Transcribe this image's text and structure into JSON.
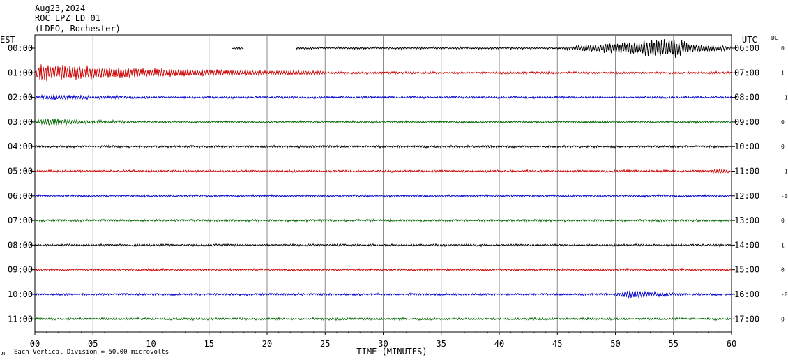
{
  "header": {
    "date": "Aug23,2024",
    "station": "ROC LPZ LD 01",
    "network": "(LDEO, Rochester)"
  },
  "left_zone": "EST",
  "right_zone": "UTC",
  "dc_label": "DC",
  "footer": {
    "scale_note": "Each Vertical Division =   50.00 microvolts",
    "corner_mark": "л"
  },
  "chart_data": {
    "type": "line",
    "title": "",
    "xlabel": "TIME (MINUTES)",
    "x_ticks": [
      "00",
      "05",
      "10",
      "15",
      "20",
      "25",
      "30",
      "35",
      "40",
      "45",
      "50",
      "55",
      "60"
    ],
    "xlim": [
      0,
      60
    ],
    "grid": "vertical lines every 5 minutes",
    "trace_colors": [
      "#000000",
      "#cc0000",
      "#0000cc",
      "#006600"
    ],
    "rows": [
      {
        "est": "00:00",
        "utc": "06:00",
        "dc": "0",
        "color": "#000000",
        "segments": [
          [
            17,
            18
          ],
          [
            22.5,
            60
          ]
        ],
        "events": [
          {
            "start": 45,
            "end": 60,
            "peak_minute": 55,
            "amp": 1.0
          }
        ]
      },
      {
        "est": "01:00",
        "utc": "07:00",
        "dc": "1",
        "color": "#cc0000",
        "segments": [
          [
            0,
            60
          ]
        ],
        "events": [
          {
            "start": 0,
            "end": 25,
            "peak_minute": 0.3,
            "amp": 0.9
          }
        ]
      },
      {
        "est": "02:00",
        "utc": "08:00",
        "dc": "-1",
        "color": "#0000cc",
        "segments": [
          [
            0,
            60
          ]
        ],
        "events": [
          {
            "start": 0,
            "end": 10,
            "peak_minute": 1.5,
            "amp": 0.2
          }
        ]
      },
      {
        "est": "03:00",
        "utc": "09:00",
        "dc": "0",
        "color": "#006600",
        "segments": [
          [
            0,
            60
          ]
        ],
        "events": [
          {
            "start": 0,
            "end": 8,
            "peak_minute": 1.0,
            "amp": 0.3
          }
        ]
      },
      {
        "est": "04:00",
        "utc": "10:00",
        "dc": "0",
        "color": "#000000",
        "segments": [
          [
            0,
            60
          ]
        ],
        "events": []
      },
      {
        "est": "05:00",
        "utc": "11:00",
        "dc": "-1",
        "color": "#cc0000",
        "segments": [
          [
            0,
            60
          ]
        ],
        "events": [
          {
            "start": 58,
            "end": 60,
            "peak_minute": 59,
            "amp": 0.2
          }
        ]
      },
      {
        "est": "06:00",
        "utc": "12:00",
        "dc": "-0",
        "color": "#0000cc",
        "segments": [
          [
            0,
            60
          ]
        ],
        "events": []
      },
      {
        "est": "07:00",
        "utc": "13:00",
        "dc": "0",
        "color": "#006600",
        "segments": [
          [
            0,
            60
          ]
        ],
        "events": []
      },
      {
        "est": "08:00",
        "utc": "14:00",
        "dc": "1",
        "color": "#000000",
        "segments": [
          [
            0,
            60
          ]
        ],
        "events": []
      },
      {
        "est": "09:00",
        "utc": "15:00",
        "dc": "0",
        "color": "#cc0000",
        "segments": [
          [
            0,
            60
          ]
        ],
        "events": []
      },
      {
        "est": "10:00",
        "utc": "16:00",
        "dc": "-0",
        "color": "#0000cc",
        "segments": [
          [
            0,
            60
          ]
        ],
        "events": [
          {
            "start": 50,
            "end": 56,
            "peak_minute": 51.3,
            "amp": 0.45
          }
        ]
      },
      {
        "est": "11:00",
        "utc": "17:00",
        "dc": "0",
        "color": "#006600",
        "segments": [
          [
            0,
            60
          ]
        ],
        "events": []
      }
    ]
  }
}
